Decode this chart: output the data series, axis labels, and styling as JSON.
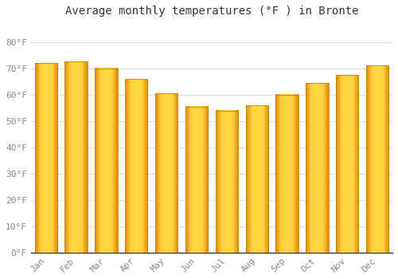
{
  "title": "Average monthly temperatures (°F ) in Bronte",
  "months": [
    "Jan",
    "Feb",
    "Mar",
    "Apr",
    "May",
    "Jun",
    "Jul",
    "Aug",
    "Sep",
    "Oct",
    "Nov",
    "Dec"
  ],
  "values": [
    72,
    72.5,
    70,
    66,
    60.5,
    55.5,
    54,
    56,
    60,
    64.5,
    67.5,
    71
  ],
  "bar_color_left": "#F5A800",
  "bar_color_center": "#FFD840",
  "bar_color_right": "#E89000",
  "background_color": "#FFFFFF",
  "grid_color": "#DDDDDD",
  "ylim": [
    0,
    88
  ],
  "yticks": [
    0,
    10,
    20,
    30,
    40,
    50,
    60,
    70,
    80
  ],
  "ytick_labels": [
    "0°F",
    "10°F",
    "20°F",
    "30°F",
    "40°F",
    "50°F",
    "60°F",
    "70°F",
    "80°F"
  ],
  "title_fontsize": 10,
  "tick_fontsize": 8,
  "tick_color": "#888888",
  "spine_color": "#333333"
}
